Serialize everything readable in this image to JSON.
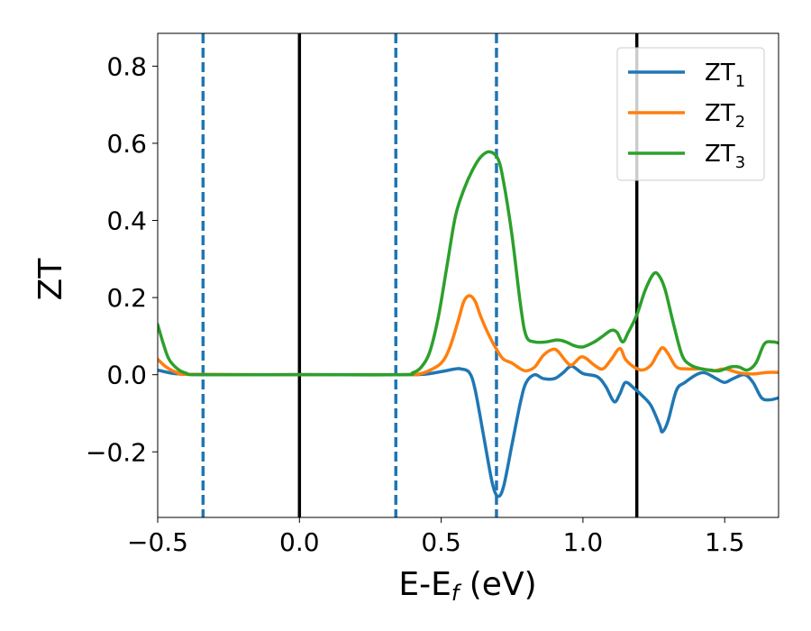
{
  "chart_data": {
    "type": "line",
    "xlabel_main": "E-E",
    "xlabel_sub": "f",
    "xlabel_unit": " (eV)",
    "ylabel": "ZT",
    "xlim": [
      -0.5,
      1.69
    ],
    "ylim": [
      -0.37,
      0.885
    ],
    "xticks": [
      -0.5,
      0.0,
      0.5,
      1.0,
      1.5
    ],
    "xtick_labels": [
      "−0.5",
      "0.0",
      "0.5",
      "1.0",
      "1.5"
    ],
    "yticks": [
      -0.2,
      0.0,
      0.2,
      0.4,
      0.6,
      0.8
    ],
    "ytick_labels": [
      "−0.2",
      "0.0",
      "0.2",
      "0.4",
      "0.6",
      "0.8"
    ],
    "grid": false,
    "legend_position": "top-right",
    "vlines": [
      {
        "x": -0.34,
        "style": "dashed",
        "color": "#1f77b4"
      },
      {
        "x": 0.0,
        "style": "solid",
        "color": "#000000"
      },
      {
        "x": 0.34,
        "style": "dashed",
        "color": "#1f77b4"
      },
      {
        "x": 0.695,
        "style": "dashed",
        "color": "#1f77b4"
      },
      {
        "x": 1.19,
        "style": "solid",
        "color": "#000000"
      }
    ],
    "series": [
      {
        "name_main": "ZT",
        "name_sub": "1",
        "color": "#1f77b4",
        "points": [
          [
            -0.5,
            0.012
          ],
          [
            -0.45,
            0.004
          ],
          [
            -0.4,
            0.001
          ],
          [
            -0.3,
            0.0
          ],
          [
            0.0,
            0.0
          ],
          [
            0.3,
            0.0
          ],
          [
            0.4,
            0.0
          ],
          [
            0.45,
            0.002
          ],
          [
            0.5,
            0.008
          ],
          [
            0.55,
            0.015
          ],
          [
            0.57,
            0.015
          ],
          [
            0.6,
            0.005
          ],
          [
            0.62,
            -0.04
          ],
          [
            0.65,
            -0.16
          ],
          [
            0.68,
            -0.28
          ],
          [
            0.7,
            -0.315
          ],
          [
            0.72,
            -0.29
          ],
          [
            0.75,
            -0.18
          ],
          [
            0.78,
            -0.07
          ],
          [
            0.8,
            -0.02
          ],
          [
            0.83,
            0.0
          ],
          [
            0.86,
            -0.01
          ],
          [
            0.9,
            -0.01
          ],
          [
            0.93,
            0.005
          ],
          [
            0.96,
            0.022
          ],
          [
            1.0,
            0.003
          ],
          [
            1.05,
            -0.005
          ],
          [
            1.08,
            -0.03
          ],
          [
            1.11,
            -0.07
          ],
          [
            1.13,
            -0.05
          ],
          [
            1.15,
            -0.02
          ],
          [
            1.18,
            -0.035
          ],
          [
            1.21,
            -0.055
          ],
          [
            1.24,
            -0.08
          ],
          [
            1.27,
            -0.13
          ],
          [
            1.28,
            -0.148
          ],
          [
            1.3,
            -0.12
          ],
          [
            1.33,
            -0.04
          ],
          [
            1.36,
            -0.02
          ],
          [
            1.4,
            0.0
          ],
          [
            1.43,
            0.005
          ],
          [
            1.47,
            -0.01
          ],
          [
            1.5,
            -0.02
          ],
          [
            1.53,
            -0.01
          ],
          [
            1.57,
            0.0
          ],
          [
            1.6,
            -0.02
          ],
          [
            1.63,
            -0.06
          ],
          [
            1.66,
            -0.065
          ],
          [
            1.69,
            -0.06
          ]
        ]
      },
      {
        "name_main": "ZT",
        "name_sub": "2",
        "color": "#ff7f0e",
        "points": [
          [
            -0.5,
            0.04
          ],
          [
            -0.47,
            0.02
          ],
          [
            -0.43,
            0.005
          ],
          [
            -0.38,
            0.001
          ],
          [
            0.0,
            0.0
          ],
          [
            0.38,
            0.0
          ],
          [
            0.42,
            0.002
          ],
          [
            0.45,
            0.008
          ],
          [
            0.5,
            0.03
          ],
          [
            0.53,
            0.07
          ],
          [
            0.56,
            0.14
          ],
          [
            0.58,
            0.19
          ],
          [
            0.6,
            0.205
          ],
          [
            0.62,
            0.19
          ],
          [
            0.64,
            0.15
          ],
          [
            0.67,
            0.1
          ],
          [
            0.7,
            0.06
          ],
          [
            0.72,
            0.04
          ],
          [
            0.75,
            0.03
          ],
          [
            0.78,
            0.015
          ],
          [
            0.8,
            0.01
          ],
          [
            0.83,
            0.02
          ],
          [
            0.86,
            0.05
          ],
          [
            0.89,
            0.065
          ],
          [
            0.91,
            0.062
          ],
          [
            0.94,
            0.035
          ],
          [
            0.96,
            0.025
          ],
          [
            0.99,
            0.045
          ],
          [
            1.01,
            0.043
          ],
          [
            1.04,
            0.025
          ],
          [
            1.07,
            0.015
          ],
          [
            1.1,
            0.04
          ],
          [
            1.13,
            0.068
          ],
          [
            1.15,
            0.04
          ],
          [
            1.18,
            0.02
          ],
          [
            1.21,
            0.012
          ],
          [
            1.24,
            0.025
          ],
          [
            1.26,
            0.05
          ],
          [
            1.28,
            0.07
          ],
          [
            1.3,
            0.055
          ],
          [
            1.33,
            0.02
          ],
          [
            1.37,
            0.015
          ],
          [
            1.42,
            0.015
          ],
          [
            1.46,
            0.01
          ],
          [
            1.5,
            0.015
          ],
          [
            1.55,
            0.005
          ],
          [
            1.6,
            0.002
          ],
          [
            1.65,
            0.006
          ],
          [
            1.69,
            0.006
          ]
        ]
      },
      {
        "name_main": "ZT",
        "name_sub": "3",
        "color": "#2ca02c",
        "points": [
          [
            -0.5,
            0.13
          ],
          [
            -0.48,
            0.08
          ],
          [
            -0.46,
            0.04
          ],
          [
            -0.43,
            0.015
          ],
          [
            -0.4,
            0.004
          ],
          [
            -0.35,
            0.0
          ],
          [
            0.0,
            0.0
          ],
          [
            0.36,
            0.0
          ],
          [
            0.4,
            0.005
          ],
          [
            0.43,
            0.02
          ],
          [
            0.46,
            0.06
          ],
          [
            0.49,
            0.15
          ],
          [
            0.52,
            0.28
          ],
          [
            0.55,
            0.41
          ],
          [
            0.58,
            0.48
          ],
          [
            0.61,
            0.53
          ],
          [
            0.64,
            0.565
          ],
          [
            0.67,
            0.578
          ],
          [
            0.7,
            0.56
          ],
          [
            0.72,
            0.5
          ],
          [
            0.75,
            0.36
          ],
          [
            0.78,
            0.18
          ],
          [
            0.8,
            0.1
          ],
          [
            0.83,
            0.085
          ],
          [
            0.87,
            0.085
          ],
          [
            0.91,
            0.09
          ],
          [
            0.94,
            0.085
          ],
          [
            0.97,
            0.075
          ],
          [
            1.0,
            0.072
          ],
          [
            1.04,
            0.085
          ],
          [
            1.07,
            0.1
          ],
          [
            1.1,
            0.115
          ],
          [
            1.12,
            0.11
          ],
          [
            1.14,
            0.085
          ],
          [
            1.16,
            0.11
          ],
          [
            1.19,
            0.155
          ],
          [
            1.22,
            0.22
          ],
          [
            1.25,
            0.262
          ],
          [
            1.27,
            0.255
          ],
          [
            1.29,
            0.22
          ],
          [
            1.32,
            0.13
          ],
          [
            1.35,
            0.05
          ],
          [
            1.38,
            0.025
          ],
          [
            1.42,
            0.015
          ],
          [
            1.45,
            0.012
          ],
          [
            1.48,
            0.01
          ],
          [
            1.52,
            0.02
          ],
          [
            1.55,
            0.02
          ],
          [
            1.58,
            0.012
          ],
          [
            1.61,
            0.03
          ],
          [
            1.64,
            0.08
          ],
          [
            1.67,
            0.085
          ],
          [
            1.69,
            0.082
          ]
        ]
      }
    ]
  }
}
